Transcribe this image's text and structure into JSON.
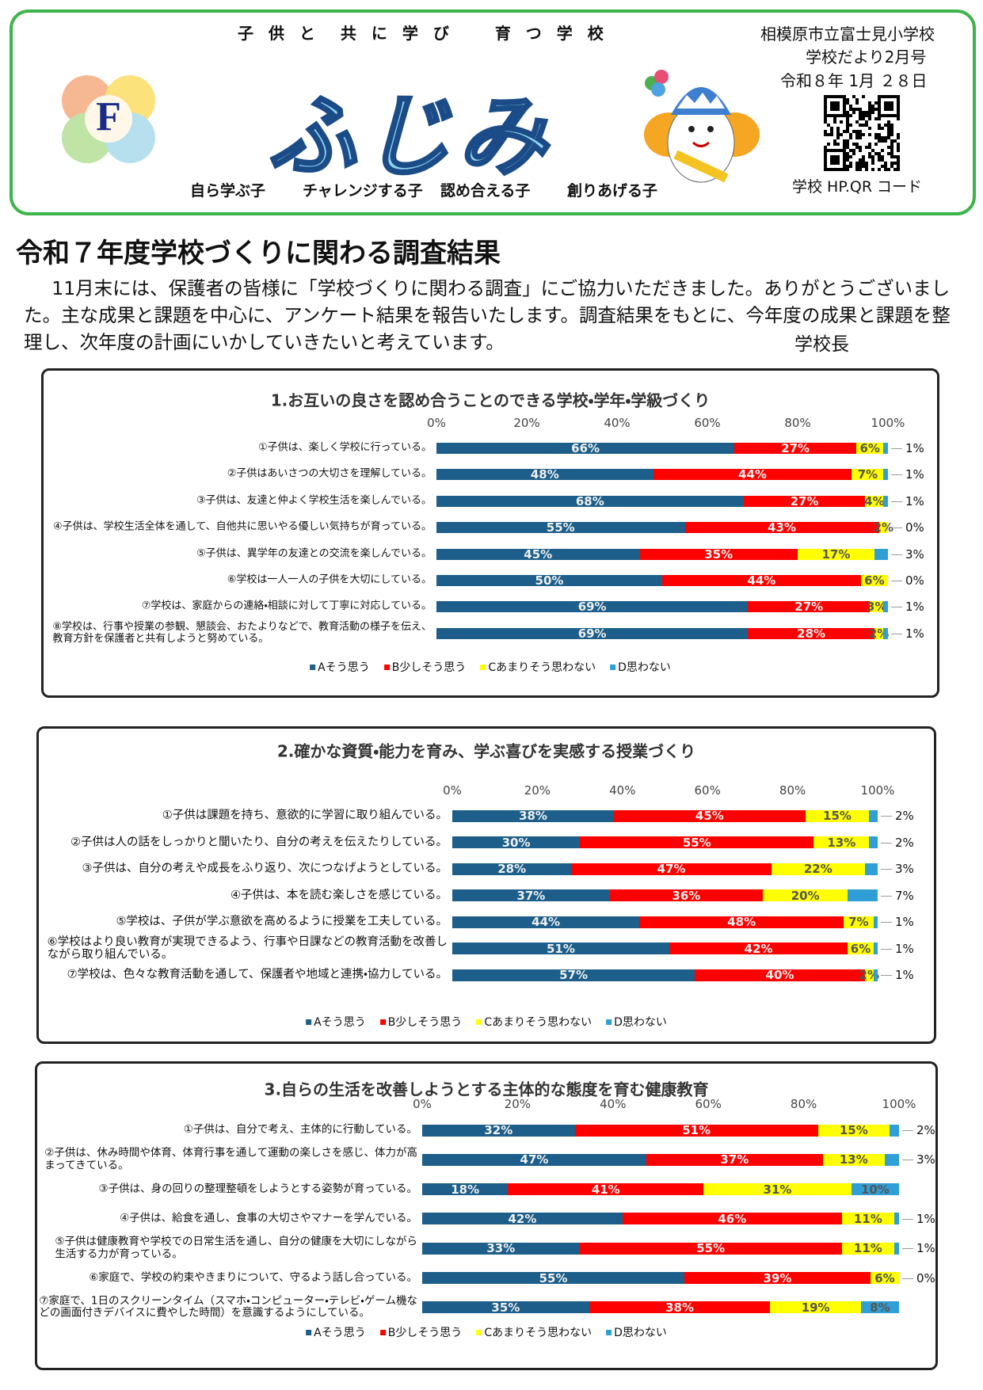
{
  "header": {
    "motto": "子 供 と　共 に 学 び　　育 つ 学 校",
    "logo_letter": "F",
    "title": "ふじみ",
    "school": "相模原市立富士見小学校",
    "issue": "学校だより2月号",
    "date": "令和８年 1月 ２８日",
    "qr_caption": "学校 HP.QR コード",
    "slogans": [
      "自ら学ぶ子",
      "チャレンジする子",
      "認め合える子",
      "創りあげる子"
    ]
  },
  "heading": "令和７年度学校づくりに関わる調査結果",
  "intro": {
    "text": "11月末には、保護者の皆様に「学校づくりに関わる調査」にご協力いただきました。ありがとうございました。主な成果と課題を中心に、アンケート結果を報告いたします。調査結果をもとに、今年度の成果と課題を整理し、次年度の計画にいかしていきたいと考えています。",
    "signature": "学校長"
  },
  "chart_data": [
    {
      "type": "bar",
      "orientation": "horizontal",
      "stacked": true,
      "title": "1.お互いの良さを認め合うことのできる学校・学年・学級づくり",
      "categories": [
        "①子供は、楽しく学校に行っている。",
        "②子供はあいさつの大切さを理解している。",
        "③子供は、友達と仲よく学校生活を楽しんでいる。",
        "④子供は、学校生活全体を通して、自他共に思いやる優しい気持ちが育っている。",
        "⑤子供は、異学年の友達との交流を楽しんでいる。",
        "⑥学校は一人一人の子供を大切にしている。",
        "⑦学校は、家庭からの連絡・相談に対して丁寧に対応している。",
        "⑧学校は、行事や授業の参観、懇談会、おたよりなどで、教育活動の様子を伝え、\n教育方針を保護者と共有しようと努めている。"
      ],
      "series": [
        {
          "name": "Aそう思う",
          "color": "#1d5f8a",
          "values": [
            66,
            48,
            68,
            55,
            45,
            50,
            69,
            69
          ],
          "value_labels": [
            "66%",
            "48%",
            "68%",
            "55%",
            "45%",
            "50%",
            "69%",
            "69%"
          ]
        },
        {
          "name": "B少しそう思う",
          "color": "#ff0000",
          "values": [
            27,
            44,
            27,
            43,
            35,
            44,
            27,
            28
          ],
          "value_labels": [
            "27%",
            "44%",
            "27%",
            "43%",
            "35%",
            "44%",
            "27%",
            "28%"
          ]
        },
        {
          "name": "Cあまりそう思わない",
          "color": "#ffff00",
          "values": [
            6,
            7,
            4,
            2,
            17,
            6,
            3,
            2
          ],
          "value_labels": [
            "6%",
            "7%",
            "4%",
            "2%",
            "17%",
            "6%",
            "3%",
            "2%"
          ]
        },
        {
          "name": "D思わない",
          "color": "#2f9fd6",
          "values": [
            1,
            1,
            1,
            0,
            3,
            0,
            1,
            1
          ],
          "value_labels": [
            "1%",
            "1%",
            "1%",
            "0%",
            "3%",
            "0%",
            "1%",
            "1%"
          ]
        }
      ],
      "xlim": [
        0,
        100
      ],
      "xticks": [
        {
          "value": 0,
          "label": "0%"
        },
        {
          "value": 20,
          "label": "20%"
        },
        {
          "value": 40,
          "label": "40%"
        },
        {
          "value": 60,
          "label": "60%"
        },
        {
          "value": 80,
          "label": "80%"
        },
        {
          "value": 100,
          "label": "100%"
        }
      ],
      "legend": "bottom"
    },
    {
      "type": "bar",
      "orientation": "horizontal",
      "stacked": true,
      "title": "2.確かな資質・能力を育み、学ぶ喜びを実感する授業づくり",
      "categories": [
        "①子供は課題を持ち、意欲的に学習に取り組んでいる。",
        "②子供は人の話をしっかりと聞いたり、自分の考えを伝えたりしている。",
        "③子供は、自分の考えや成長をふり返り、次につなげようとしている。",
        "④子供は、本を読む楽しさを感じている。",
        "⑤学校は、子供が学ぶ意欲を高めるように授業を工夫している。",
        "⑥学校はより良い教育が実現できるよう、行事や日課などの教育活動を改善し\nながら取り組んでいる。",
        "⑦学校は、色々な教育活動を通して、保護者や地域と連携・協力している。"
      ],
      "series": [
        {
          "name": "Aそう思う",
          "color": "#1d5f8a",
          "values": [
            38,
            30,
            28,
            37,
            44,
            51,
            57
          ],
          "value_labels": [
            "38%",
            "30%",
            "28%",
            "37%",
            "44%",
            "51%",
            "57%"
          ]
        },
        {
          "name": "B少しそう思う",
          "color": "#ff0000",
          "values": [
            45,
            55,
            47,
            36,
            48,
            42,
            40
          ],
          "value_labels": [
            "45%",
            "55%",
            "47%",
            "36%",
            "48%",
            "42%",
            "40%"
          ]
        },
        {
          "name": "Cあまりそう思わない",
          "color": "#ffff00",
          "values": [
            15,
            13,
            22,
            20,
            7,
            6,
            2
          ],
          "value_labels": [
            "15%",
            "13%",
            "22%",
            "20%",
            "7%",
            "6%",
            "2%"
          ]
        },
        {
          "name": "D思わない",
          "color": "#2f9fd6",
          "values": [
            2,
            2,
            3,
            7,
            1,
            1,
            1
          ],
          "value_labels": [
            "2%",
            "2%",
            "3%",
            "7%",
            "1%",
            "1%",
            "1%"
          ]
        }
      ],
      "xlim": [
        0,
        100
      ],
      "xticks": [
        {
          "value": 0,
          "label": "0%"
        },
        {
          "value": 20,
          "label": "20%"
        },
        {
          "value": 40,
          "label": "40%"
        },
        {
          "value": 60,
          "label": "60%"
        },
        {
          "value": 80,
          "label": "80%"
        },
        {
          "value": 100,
          "label": "100%"
        }
      ],
      "legend": "bottom"
    },
    {
      "type": "bar",
      "orientation": "horizontal",
      "stacked": true,
      "title": "3.自らの生活を改善しようとする主体的な態度を育む健康教育",
      "categories": [
        "①子供は、自分で考え、主体的に行動している。",
        "②子供は、休み時間や体育、体育行事を通して運動の楽しさを感じ、体力が高\nまってきている。",
        "③子供は、身の回りの整理整頓をしようとする姿勢が育っている。",
        "④子供は、給食を通し、食事の大切さやマナーを学んでいる。",
        "⑤子供は健康教育や学校での日常生活を通し、自分の健康を大切にしながら\n生活する力が育っている。",
        "⑥家庭で、学校の約束やきまりについて、守るよう話し合っている。",
        "⑦家庭で、1日のスクリーンタイム（スマホ・コンピューター・テレビ・ゲーム機な\nどの画面付きデバイスに費やした時間）を意識するようにしている。"
      ],
      "series": [
        {
          "name": "Aそう思う",
          "color": "#1d5f8a",
          "values": [
            32,
            47,
            18,
            42,
            33,
            55,
            35
          ],
          "value_labels": [
            "32%",
            "47%",
            "18%",
            "42%",
            "33%",
            "55%",
            "35%"
          ]
        },
        {
          "name": "B少しそう思う",
          "color": "#ff0000",
          "values": [
            51,
            37,
            41,
            46,
            55,
            39,
            38
          ],
          "value_labels": [
            "51%",
            "37%",
            "41%",
            "46%",
            "55%",
            "39%",
            "38%"
          ]
        },
        {
          "name": "Cあまりそう思わない",
          "color": "#ffff00",
          "values": [
            15,
            13,
            31,
            11,
            11,
            6,
            19
          ],
          "value_labels": [
            "15%",
            "13%",
            "31%",
            "11%",
            "11%",
            "6%",
            "19%"
          ]
        },
        {
          "name": "D思わない",
          "color": "#2f9fd6",
          "values": [
            2,
            3,
            10,
            1,
            1,
            0,
            8
          ],
          "value_labels": [
            "2%",
            "3%",
            "10%",
            "1%",
            "1%",
            "0%",
            "8%"
          ]
        }
      ],
      "xlim": [
        0,
        100
      ],
      "xticks": [
        {
          "value": 0,
          "label": "0%"
        },
        {
          "value": 20,
          "label": "20%"
        },
        {
          "value": 40,
          "label": "40%"
        },
        {
          "value": 60,
          "label": "60%"
        },
        {
          "value": 80,
          "label": "80%"
        },
        {
          "value": 100,
          "label": "100%"
        }
      ],
      "legend": "bottom"
    }
  ]
}
